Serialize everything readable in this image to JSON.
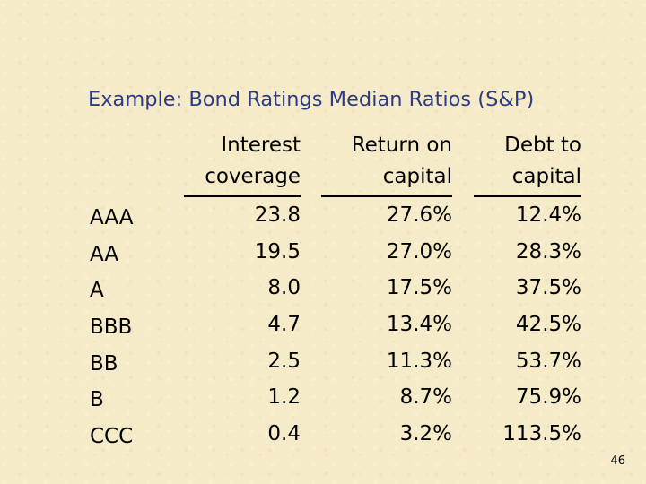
{
  "slide": {
    "title": "Example: Bond Ratings Median Ratios (S&P)",
    "page_number": "46"
  },
  "table": {
    "headers": {
      "interest_coverage": [
        "Interest",
        "coverage"
      ],
      "return_on_capital": [
        "Return on",
        "capital"
      ],
      "debt_to_capital": [
        "Debt to",
        "capital"
      ]
    },
    "rows": [
      {
        "rating": "AAA",
        "interest_coverage": "23.8",
        "return_on_capital": "27.6%",
        "debt_to_capital": "12.4%"
      },
      {
        "rating": "AA",
        "interest_coverage": "19.5",
        "return_on_capital": "27.0%",
        "debt_to_capital": "28.3%"
      },
      {
        "rating": "A",
        "interest_coverage": "8.0",
        "return_on_capital": "17.5%",
        "debt_to_capital": "37.5%"
      },
      {
        "rating": "BBB",
        "interest_coverage": "4.7",
        "return_on_capital": "13.4%",
        "debt_to_capital": "42.5%"
      },
      {
        "rating": "BB",
        "interest_coverage": "2.5",
        "return_on_capital": "11.3%",
        "debt_to_capital": "53.7%"
      },
      {
        "rating": "B",
        "interest_coverage": "1.2",
        "return_on_capital": "8.7%",
        "debt_to_capital": "75.9%"
      },
      {
        "rating": "CCC",
        "interest_coverage": "0.4",
        "return_on_capital": "3.2%",
        "debt_to_capital": "113.5%"
      }
    ]
  }
}
